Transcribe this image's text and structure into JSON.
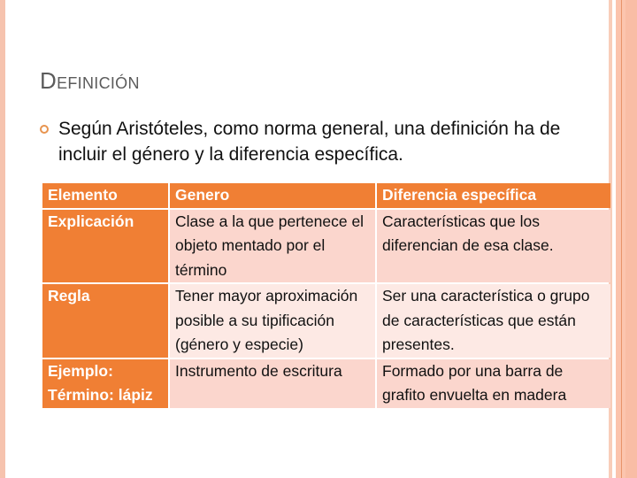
{
  "slide": {
    "title_initial": "D",
    "title_rest": "EFINICIÓN",
    "bullet": "Según Aristóteles, como norma general, una definición ha de incluir el género y la diferencia específica."
  },
  "table": {
    "headers": [
      "Elemento",
      "Genero",
      "Diferencia específica"
    ],
    "rows": [
      [
        "Explicación",
        "Clase a la que pertenece el objeto mentado por el término",
        "Características que los diferencian de esa clase."
      ],
      [
        "Regla",
        "Tener mayor aproximación posible a su tipificación (género y especie)",
        "Ser una característica o grupo de características que están presentes."
      ],
      [
        "Ejemplo: Término: lápiz",
        "Instrumento de escritura",
        "Formado por una barra de grafito envuelta en madera"
      ]
    ]
  },
  "colors": {
    "accent": "#f07f34",
    "row_odd": "#fbd6cd",
    "row_even": "#fde9e4",
    "border": "#f6c3ae"
  }
}
